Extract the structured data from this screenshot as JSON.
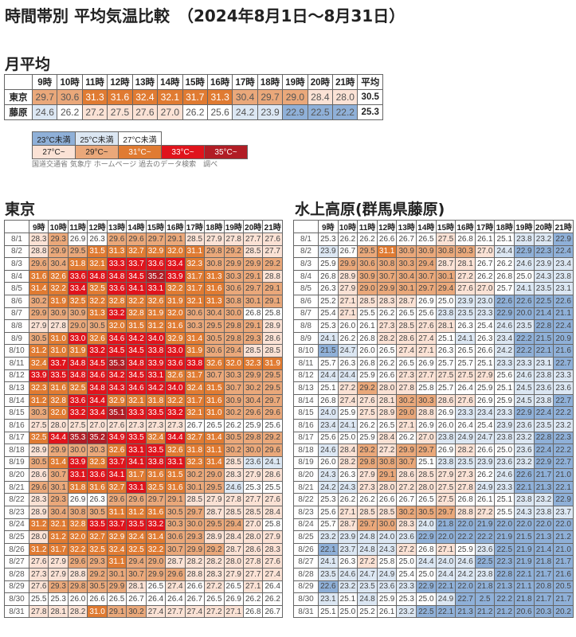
{
  "title": "時間帯別 平均気温比較　（2024年8月1日～8月31日）",
  "monthly": {
    "heading": "月平均",
    "hours": [
      "9時",
      "10時",
      "11時",
      "12時",
      "13時",
      "14時",
      "15時",
      "16時",
      "17時",
      "18時",
      "19時",
      "20時",
      "21時"
    ],
    "avg_label": "平均",
    "rows": [
      {
        "name": "東京",
        "values": [
          29.7,
          30.6,
          31.3,
          31.6,
          32.4,
          32.1,
          31.7,
          31.3,
          30.4,
          29.7,
          29.0,
          28.4,
          28.0
        ],
        "avg": "30.5"
      },
      {
        "name": "藤原",
        "values": [
          24.6,
          26.2,
          27.2,
          27.5,
          27.6,
          27.0,
          26.2,
          25.6,
          24.2,
          23.9,
          22.9,
          22.5,
          22.2
        ],
        "avg": "25.3"
      }
    ]
  },
  "legend": {
    "row1": [
      "23°C未満",
      "25°C未満",
      "27°C未満"
    ],
    "row2": [
      "27°C~",
      "29°C~",
      "31°C~",
      "33°C~",
      "35°C~"
    ],
    "colors": {
      "lt23": "#8fb0d8",
      "lt25": "#dce7f3",
      "lt27": "#ffffff",
      "ge27": "#fbe2d5",
      "ge29": "#eaa87a",
      "ge31": "#e07b32",
      "ge33": "#e0141c",
      "ge35": "#b11d25"
    }
  },
  "source": "国道交通省 気象庁 ホームページ 過去のデータ検索　調べ",
  "chart_data": {
    "type": "heatmap",
    "hours": [
      "9時",
      "10時",
      "11時",
      "12時",
      "13時",
      "14時",
      "15時",
      "16時",
      "17時",
      "18時",
      "19時",
      "20時",
      "21時"
    ],
    "dates": [
      "8/1",
      "8/2",
      "8/3",
      "8/4",
      "8/5",
      "8/6",
      "8/7",
      "8/8",
      "8/9",
      "8/10",
      "8/11",
      "8/12",
      "8/13",
      "8/14",
      "8/15",
      "8/16",
      "8/17",
      "8/18",
      "8/19",
      "8/20",
      "8/21",
      "8/22",
      "8/23",
      "8/24",
      "8/25",
      "8/26",
      "8/27",
      "8/28",
      "8/29",
      "8/30",
      "8/31"
    ],
    "tokyo": {
      "heading": "東京",
      "values": [
        [
          28.3,
          29.3,
          26.9,
          26.3,
          29.6,
          29.6,
          29.7,
          29.1,
          28.5,
          27.9,
          27.8,
          27.7,
          27.6
        ],
        [
          28.8,
          29.9,
          29.5,
          31.5,
          31.3,
          32.7,
          32.9,
          32.0,
          31.1,
          29.8,
          29.2,
          28.5,
          27.7
        ],
        [
          29.6,
          30.4,
          31.8,
          32.1,
          33.3,
          33.7,
          33.6,
          33.4,
          32.3,
          30.8,
          29.9,
          29.9,
          29.2
        ],
        [
          31.6,
          32.6,
          33.6,
          34.8,
          34.8,
          34.5,
          35.2,
          33.9,
          31.7,
          31.3,
          30.3,
          29.1,
          28.8
        ],
        [
          31.4,
          32.2,
          33.4,
          32.5,
          33.6,
          34.1,
          33.1,
          32.2,
          31.7,
          31.6,
          30.6,
          29.7,
          29.1
        ],
        [
          30.2,
          31.9,
          32.5,
          32.2,
          32.8,
          32.2,
          32.6,
          31.9,
          32.1,
          31.3,
          30.8,
          30.1,
          29.1
        ],
        [
          29.9,
          30.9,
          30.9,
          31.3,
          33.2,
          32.8,
          31.9,
          32.0,
          30.6,
          30.4,
          30.0,
          26.8,
          25.8
        ],
        [
          27.9,
          27.8,
          29.0,
          30.5,
          32.0,
          31.5,
          31.2,
          31.6,
          30.3,
          29.5,
          29.8,
          29.1,
          28.9
        ],
        [
          30.5,
          31.0,
          33.0,
          32.6,
          34.6,
          34.2,
          34.0,
          32.9,
          31.4,
          30.5,
          29.8,
          29.3,
          28.6
        ],
        [
          31.2,
          31.0,
          31.9,
          33.2,
          34.5,
          34.5,
          33.8,
          33.0,
          31.9,
          30.6,
          29.4,
          28.5,
          28.5
        ],
        [
          32.4,
          33.7,
          34.8,
          34.5,
          35.3,
          34.8,
          33.9,
          33.6,
          33.8,
          32.6,
          32.0,
          32.3,
          31.9
        ],
        [
          33.9,
          33.5,
          34.8,
          34.6,
          34.2,
          34.5,
          33.1,
          32.6,
          31.7,
          30.7,
          30.3,
          29.9,
          29.5
        ],
        [
          32.3,
          31.6,
          32.5,
          34.8,
          34.3,
          34.6,
          34.2,
          34.0,
          32.4,
          31.5,
          30.7,
          30.2,
          29.5
        ],
        [
          31.2,
          32.8,
          33.6,
          34.4,
          32.9,
          32.1,
          31.8,
          32.2,
          31.7,
          31.6,
          30.9,
          30.4,
          29.7
        ],
        [
          30.3,
          32.0,
          33.2,
          33.4,
          35.1,
          33.3,
          33.5,
          33.2,
          32.1,
          31.0,
          30.2,
          29.6,
          29.6
        ],
        [
          27.5,
          28.0,
          27.5,
          27.0,
          27.6,
          27.3,
          27.3,
          27.3,
          26.7,
          26.5,
          26.2,
          25.9,
          25.6
        ],
        [
          32.5,
          34.4,
          35.3,
          35.2,
          34.9,
          33.5,
          32.4,
          34.4,
          32.7,
          31.4,
          30.5,
          29.8,
          29.2
        ],
        [
          28.9,
          29.9,
          30.0,
          30.3,
          32.6,
          33.1,
          33.5,
          32.6,
          31.8,
          31.1,
          30.2,
          30.0,
          29.6
        ],
        [
          30.5,
          31.4,
          33.9,
          32.3,
          33.7,
          34.1,
          33.8,
          33.1,
          32.3,
          31.4,
          28.5,
          23.6,
          24.1
        ],
        [
          28.6,
          30.7,
          33.1,
          33.6,
          34.1,
          31.7,
          31.6,
          31.5,
          30.2,
          29.0,
          28.3,
          27.9,
          28.6
        ],
        [
          29.6,
          30.1,
          31.8,
          31.6,
          32.7,
          33.1,
          32.5,
          31.6,
          30.1,
          29.5,
          24.6,
          25.3,
          25.5
        ],
        [
          28.3,
          29.3,
          26.9,
          26.3,
          29.6,
          29.6,
          29.7,
          29.1,
          28.5,
          27.9,
          27.8,
          27.7,
          27.6
        ],
        [
          28.9,
          30.4,
          30.8,
          30.5,
          31.1,
          31.2,
          31.6,
          30.5,
          29.7,
          28.7,
          28.5,
          28.5,
          28.4
        ],
        [
          31.2,
          32.1,
          32.8,
          33.5,
          33.7,
          33.5,
          33.2,
          30.3,
          30.0,
          29.5,
          29.4,
          27.0,
          25.8
        ],
        [
          28.0,
          31.2,
          32.0,
          32.7,
          32.9,
          32.4,
          31.4,
          30.6,
          29.3,
          28.9,
          28.4,
          28.0,
          27.9
        ],
        [
          31.2,
          31.7,
          32.2,
          32.5,
          32.4,
          32.5,
          32.2,
          30.7,
          29.9,
          29.2,
          28.7,
          28.6,
          28.3
        ],
        [
          27.6,
          27.9,
          29.6,
          29.3,
          31.1,
          29.4,
          29.0,
          28.7,
          28.2,
          28.2,
          28.0,
          27.8,
          27.6
        ],
        [
          27.3,
          27.9,
          28.8,
          29.2,
          30.1,
          30.7,
          29.9,
          29.6,
          28.8,
          28.3,
          27.9,
          27.7,
          27.4
        ],
        [
          27.6,
          29.3,
          29.8,
          30.5,
          29.9,
          28.1,
          26.5,
          27.4,
          26.6,
          27.2,
          26.5,
          27.1,
          26.4
        ],
        [
          25.5,
          25.3,
          26.0,
          26.6,
          26.5,
          26.7,
          26.4,
          26.4,
          26.7,
          26.5,
          26.9,
          26.2,
          26.2
        ],
        [
          27.8,
          28.1,
          28.2,
          31.0,
          29.1,
          30.2,
          27.4,
          27.7,
          27.4,
          27.2,
          27.1,
          26.8,
          26.7
        ]
      ]
    },
    "fujiwara": {
      "heading": "水上高原(群馬県藤原)",
      "values": [
        [
          25.3,
          26.2,
          26.2,
          26.6,
          26.7,
          26.5,
          27.5,
          26.8,
          26.1,
          25.1,
          23.8,
          23.2,
          22.9
        ],
        [
          23.9,
          26.7,
          29.5,
          31.1,
          30.9,
          30.9,
          30.8,
          30.3,
          27.0,
          24.4,
          22.9,
          22.3,
          22.4
        ],
        [
          25.9,
          29.9,
          30.6,
          30.8,
          30.3,
          29.4,
          28.7,
          28.1,
          26.7,
          26.2,
          24.6,
          23.9,
          23.4
        ],
        [
          26.8,
          28.9,
          30.9,
          30.7,
          30.4,
          30.7,
          30.1,
          27.2,
          26.2,
          26.8,
          25.0,
          24.3,
          23.8
        ],
        [
          26.3,
          27.9,
          29.0,
          29.9,
          30.1,
          29.7,
          29.4,
          27.6,
          27.0,
          25.7,
          24.1,
          23.5,
          23.1
        ],
        [
          25.2,
          27.1,
          28.5,
          28.3,
          28.7,
          26.9,
          25.0,
          23.9,
          23.0,
          22.6,
          22.6,
          22.5,
          22.6
        ],
        [
          25.4,
          27.1,
          25.5,
          26.2,
          26.5,
          25.6,
          23.8,
          23.5,
          23.3,
          22.9,
          20.0,
          21.4,
          21.1
        ],
        [
          25.3,
          26.0,
          26.1,
          27.3,
          28.5,
          27.6,
          28.1,
          26.3,
          25.4,
          24.6,
          23.5,
          22.8,
          22.4
        ],
        [
          24.1,
          26.2,
          26.8,
          28.2,
          28.6,
          27.4,
          25.1,
          24.1,
          26.3,
          23.4,
          22.2,
          21.5,
          20.9
        ],
        [
          21.5,
          24.7,
          26.0,
          26.5,
          27.4,
          27.1,
          26.3,
          26.5,
          26.6,
          24.2,
          22.2,
          22.1,
          21.6
        ],
        [
          25.7,
          26.3,
          26.8,
          26.2,
          26.5,
          26.9,
          25.7,
          25.7,
          25.1,
          23.3,
          23.3,
          23.1,
          22.7
        ],
        [
          24.4,
          24.4,
          25.9,
          26.6,
          27.3,
          27.7,
          27.5,
          27.5,
          27.9,
          25.6,
          24.6,
          23.8,
          23.3
        ],
        [
          25.1,
          27.2,
          29.2,
          28.0,
          27.8,
          25.8,
          25.7,
          26.4,
          25.9,
          25.1,
          24.5,
          23.6,
          23.6
        ],
        [
          26.8,
          27.4,
          27.6,
          28.1,
          30.2,
          30.3,
          28.6,
          27.6,
          26.9,
          25.9,
          24.5,
          23.8,
          22.7
        ],
        [
          24.0,
          25.9,
          27.5,
          28.9,
          29.0,
          28.8,
          26.9,
          23.3,
          23.4,
          23.3,
          22.9,
          22.4,
          22.2
        ],
        [
          23.4,
          24.1,
          26.2,
          26.5,
          27.1,
          26.9,
          26.0,
          26.4,
          25.4,
          23.9,
          23.6,
          23.5,
          23.2
        ],
        [
          25.6,
          25.0,
          25.9,
          28.4,
          26.2,
          27.0,
          23.8,
          24.9,
          24.7,
          23.8,
          23.2,
          22.8,
          22.3
        ],
        [
          24.6,
          28.4,
          29.2,
          27.2,
          29.9,
          29.7,
          26.9,
          28.2,
          26.6,
          25.0,
          23.6,
          22.4,
          22.2
        ],
        [
          26.0,
          28.2,
          29.8,
          30.8,
          30.7,
          25.1,
          23.8,
          23.5,
          23.9,
          23.6,
          23.2,
          22.9,
          22.7
        ],
        [
          24.3,
          26.3,
          27.9,
          29.1,
          28.6,
          28.5,
          27.9,
          27.3,
          26.2,
          24.6,
          22.6,
          21.7,
          21.0
        ],
        [
          24.2,
          24.3,
          27.3,
          28.0,
          27.2,
          28.0,
          27.5,
          27.8,
          24.9,
          23.3,
          22.1,
          21.3,
          22.1
        ],
        [
          25.3,
          26.2,
          26.2,
          26.6,
          26.7,
          26.5,
          27.5,
          26.8,
          26.1,
          25.1,
          23.8,
          23.2,
          22.9
        ],
        [
          25.6,
          27.1,
          28.5,
          28.5,
          30.2,
          30.5,
          29.7,
          28.8,
          27.2,
          25.5,
          24.3,
          23.8,
          23.7
        ],
        [
          25.7,
          28.7,
          29.7,
          30.0,
          28.3,
          24.0,
          21.8,
          22.0,
          21.9,
          22.0,
          22.0,
          22.0,
          22.0
        ],
        [
          23.2,
          23.9,
          24.8,
          24.0,
          23.6,
          22.9,
          22.0,
          22.2,
          22.2,
          21.9,
          21.5,
          21.3,
          21.2
        ],
        [
          22.1,
          23.7,
          24.8,
          24.3,
          27.2,
          26.8,
          27.1,
          25.9,
          23.6,
          22.5,
          21.9,
          21.4,
          21.0
        ],
        [
          24.1,
          26.3,
          27.2,
          25.8,
          25.0,
          24.4,
          24.0,
          24.6,
          22.5,
          22.3,
          21.9,
          21.8,
          21.7
        ],
        [
          23.5,
          24.6,
          24.7,
          24.9,
          25.4,
          25.0,
          24.4,
          24.2,
          23.8,
          22.8,
          22.1,
          21.7,
          21.6
        ],
        [
          22.6,
          23.2,
          23.5,
          23.6,
          23.3,
          22.9,
          22.1,
          22.0,
          21.8,
          21.3,
          21.1,
          20.8,
          20.5
        ],
        [
          23.1,
          25.1,
          24.8,
          25.9,
          25.3,
          25.0,
          24.9,
          22.7,
          2.5,
          22.2,
          21.8,
          21.7,
          21.7
        ],
        [
          25.1,
          25.0,
          25.2,
          26.1,
          23.2,
          22.5,
          22.1,
          21.3,
          21.2,
          21.2,
          20.6,
          20.3,
          20.2
        ]
      ]
    }
  }
}
